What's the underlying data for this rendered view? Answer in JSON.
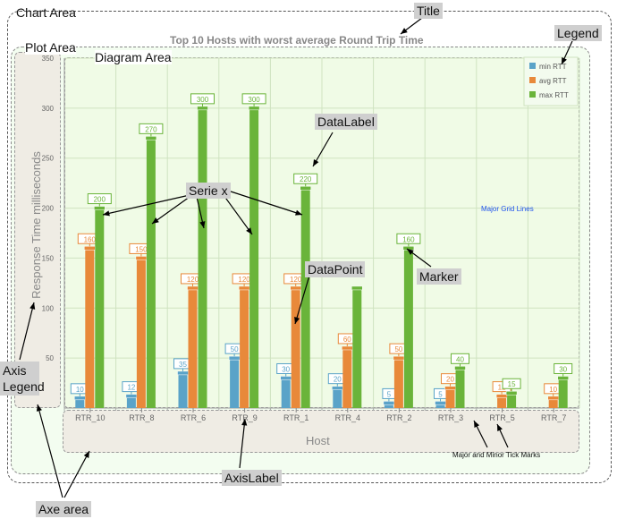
{
  "labels": {
    "chart_area": "Chart Area",
    "title_callout": "Title",
    "legend_callout": "Legend",
    "plot_area": "Plot Area",
    "diagram_area": "Diagram Area",
    "datalabel_callout": "DataLabel",
    "serie_callout": "Serie x",
    "datapoint_callout": "DataPoint",
    "marker_callout": "Marker",
    "axis_legend_callout": "Axis Legend",
    "axis_label_callout": "AxisLabel",
    "axe_area_callout": "Axe area",
    "major_grid_note": "Major Grid Lines",
    "tick_marks_note": "Major and Minor Tick Marks"
  },
  "colors": {
    "min": "#5aa3c8",
    "avg": "#e8893a",
    "max": "#6ab43a",
    "grid": "#cfe3c0"
  },
  "chart_data": {
    "type": "bar",
    "title": "Top 10 Hosts with worst average Round Trip Time",
    "xlabel": "Host",
    "ylabel": "Response Time milliseconds",
    "ylim": [
      0,
      350
    ],
    "yticks": [
      50,
      100,
      150,
      200,
      250,
      300,
      350
    ],
    "categories": [
      "RTR_10",
      "RTR_8",
      "RTR_6",
      "RTR_9",
      "RTR_1",
      "RTR_4",
      "RTR_2",
      "RTR_3",
      "RTR_5",
      "RTR_7"
    ],
    "series": [
      {
        "name": "min RTT",
        "values": [
          10,
          12,
          35,
          50,
          30,
          20,
          5,
          5,
          0,
          0
        ]
      },
      {
        "name": "avg RTT",
        "values": [
          160,
          150,
          120,
          120,
          120,
          60,
          50,
          20,
          12,
          10
        ]
      },
      {
        "name": "max RTT",
        "values": [
          200,
          270,
          300,
          300,
          220,
          120,
          160,
          40,
          15,
          30
        ]
      }
    ],
    "data_labels": [
      [
        "10",
        "12",
        "35",
        "50",
        "30",
        "20",
        "5",
        "5",
        "",
        ""
      ],
      [
        "160",
        "150",
        "120",
        "120",
        "120",
        "60",
        "50",
        "20",
        "12",
        "10"
      ],
      [
        "200",
        "270",
        "300",
        "300",
        "220",
        "",
        "160",
        "40",
        "15",
        "30"
      ]
    ],
    "legend": [
      "min RTT",
      "avg RTT",
      "max RTT"
    ],
    "legend_position": "top-right",
    "grid": true
  }
}
